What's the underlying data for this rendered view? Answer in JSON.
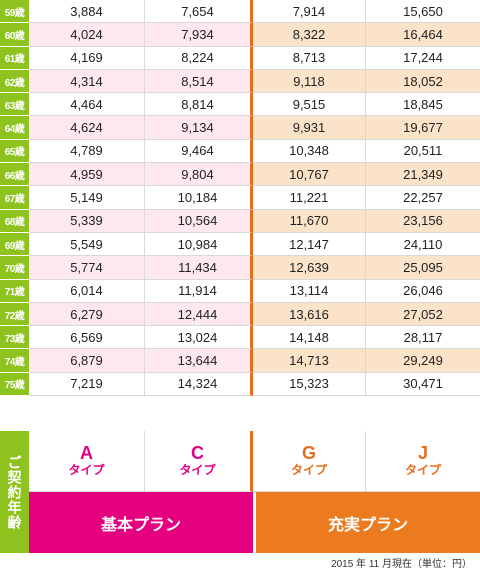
{
  "rows": [
    {
      "age": "59歳",
      "a": "3,884",
      "c": "7,654",
      "g": "7,914",
      "j": "15,650"
    },
    {
      "age": "60歳",
      "a": "4,024",
      "c": "7,934",
      "g": "8,322",
      "j": "16,464"
    },
    {
      "age": "61歳",
      "a": "4,169",
      "c": "8,224",
      "g": "8,713",
      "j": "17,244"
    },
    {
      "age": "62歳",
      "a": "4,314",
      "c": "8,514",
      "g": "9,118",
      "j": "18,052"
    },
    {
      "age": "63歳",
      "a": "4,464",
      "c": "8,814",
      "g": "9,515",
      "j": "18,845"
    },
    {
      "age": "64歳",
      "a": "4,624",
      "c": "9,134",
      "g": "9,931",
      "j": "19,677"
    },
    {
      "age": "65歳",
      "a": "4,789",
      "c": "9,464",
      "g": "10,348",
      "j": "20,511"
    },
    {
      "age": "66歳",
      "a": "4,959",
      "c": "9,804",
      "g": "10,767",
      "j": "21,349"
    },
    {
      "age": "67歳",
      "a": "5,149",
      "c": "10,184",
      "g": "11,221",
      "j": "22,257"
    },
    {
      "age": "68歳",
      "a": "5,339",
      "c": "10,564",
      "g": "11,670",
      "j": "23,156"
    },
    {
      "age": "69歳",
      "a": "5,549",
      "c": "10,984",
      "g": "12,147",
      "j": "24,110"
    },
    {
      "age": "70歳",
      "a": "5,774",
      "c": "11,434",
      "g": "12,639",
      "j": "25,095"
    },
    {
      "age": "71歳",
      "a": "6,014",
      "c": "11,914",
      "g": "13,114",
      "j": "26,046"
    },
    {
      "age": "72歳",
      "a": "6,279",
      "c": "12,444",
      "g": "13,616",
      "j": "27,052"
    },
    {
      "age": "73歳",
      "a": "6,569",
      "c": "13,024",
      "g": "14,148",
      "j": "28,117"
    },
    {
      "age": "74歳",
      "a": "6,879",
      "c": "13,644",
      "g": "14,713",
      "j": "29,249"
    },
    {
      "age": "75歳",
      "a": "7,219",
      "c": "14,324",
      "g": "15,323",
      "j": "30,471"
    }
  ],
  "header": {
    "label": "ご契約年齢",
    "types": [
      {
        "letter": "A",
        "suffix": "タイプ"
      },
      {
        "letter": "C",
        "suffix": "タイプ"
      },
      {
        "letter": "G",
        "suffix": "タイプ"
      },
      {
        "letter": "J",
        "suffix": "タイプ"
      }
    ],
    "plans": {
      "basic": "基本プラン",
      "full": "充実プラン"
    }
  },
  "footnote": "2015 年 11 月現在（単位：円）",
  "colors": {
    "age_green": "#8dc21f",
    "basic_pink": "#e5007f",
    "full_orange": "#ec7b1f"
  }
}
